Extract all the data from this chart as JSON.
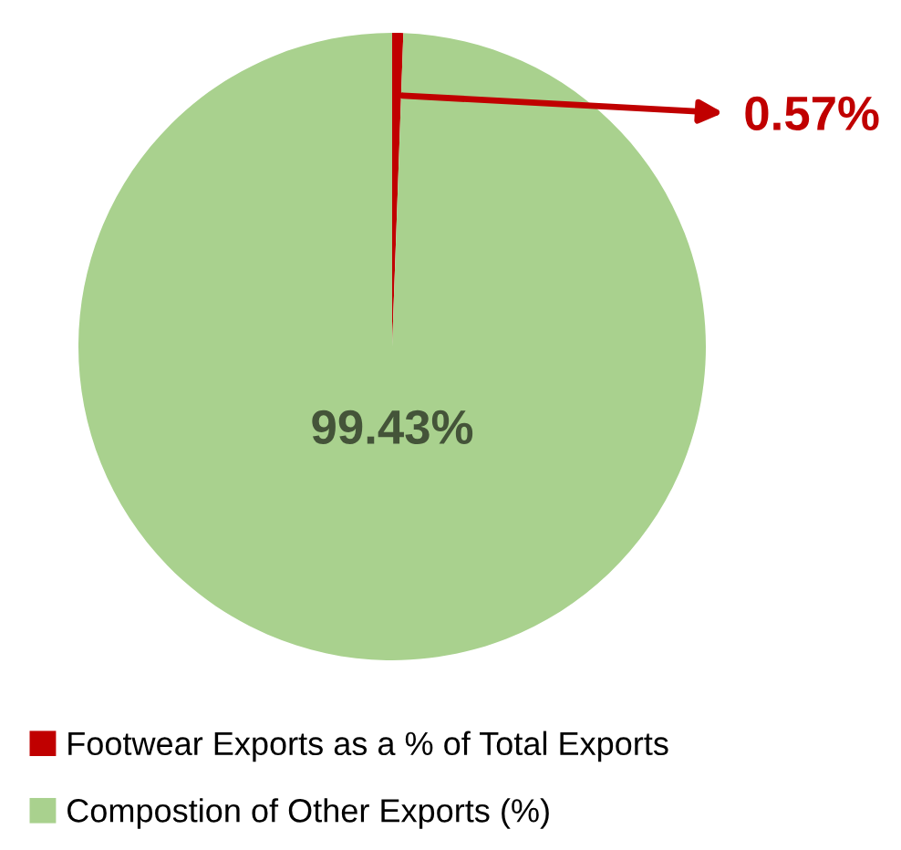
{
  "chart_data": {
    "type": "pie",
    "categories": [
      "Footwear Exports as a % of Total Exports",
      "Compostion of Other Exports (%)"
    ],
    "values": [
      0.57,
      99.43
    ],
    "colors": [
      "#c00000",
      "#a9d18e"
    ],
    "value_labels": [
      "0.57%",
      "99.43%"
    ],
    "legend": "bottom left"
  }
}
